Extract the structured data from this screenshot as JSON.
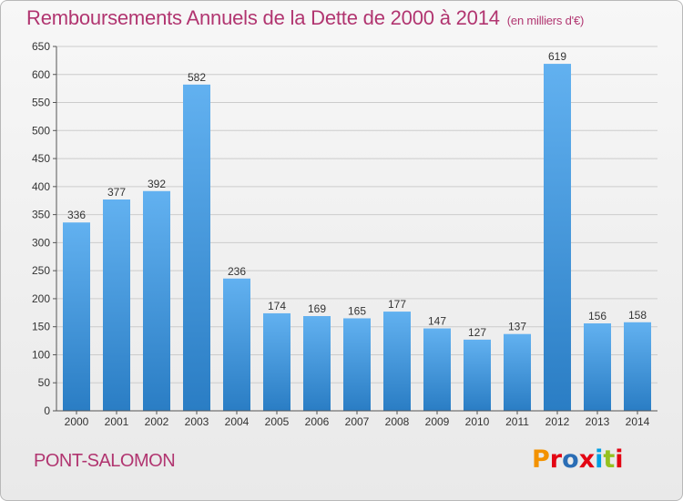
{
  "header": {
    "title": "Remboursements Annuels de la Dette de 2000 à 2014",
    "subtitle": "(en milliers d'€)"
  },
  "footer": {
    "town": "PONT-SALOMON",
    "brand": "Proxiti",
    "brand_colors": [
      "#f39200",
      "#e30613",
      "#2a6db5",
      "#e30613",
      "#009fe3",
      "#95c11f",
      "#e30613"
    ]
  },
  "colors": {
    "title": "#b13570",
    "bar_light": "#62b1f0",
    "bar_dark": "#2a7dc4",
    "grid": "#cccccc",
    "axis": "#555555"
  },
  "chart_data": {
    "type": "bar",
    "categories": [
      "2000",
      "2001",
      "2002",
      "2003",
      "2004",
      "2005",
      "2006",
      "2007",
      "2008",
      "2009",
      "2010",
      "2011",
      "2012",
      "2013",
      "2014"
    ],
    "values": [
      336,
      377,
      392,
      582,
      236,
      174,
      169,
      165,
      177,
      147,
      127,
      137,
      619,
      156,
      158
    ],
    "ylim": [
      0,
      650
    ],
    "yticks": [
      0,
      50,
      100,
      150,
      200,
      250,
      300,
      350,
      400,
      450,
      500,
      550,
      600,
      650
    ],
    "grid": true,
    "legend": "none"
  }
}
